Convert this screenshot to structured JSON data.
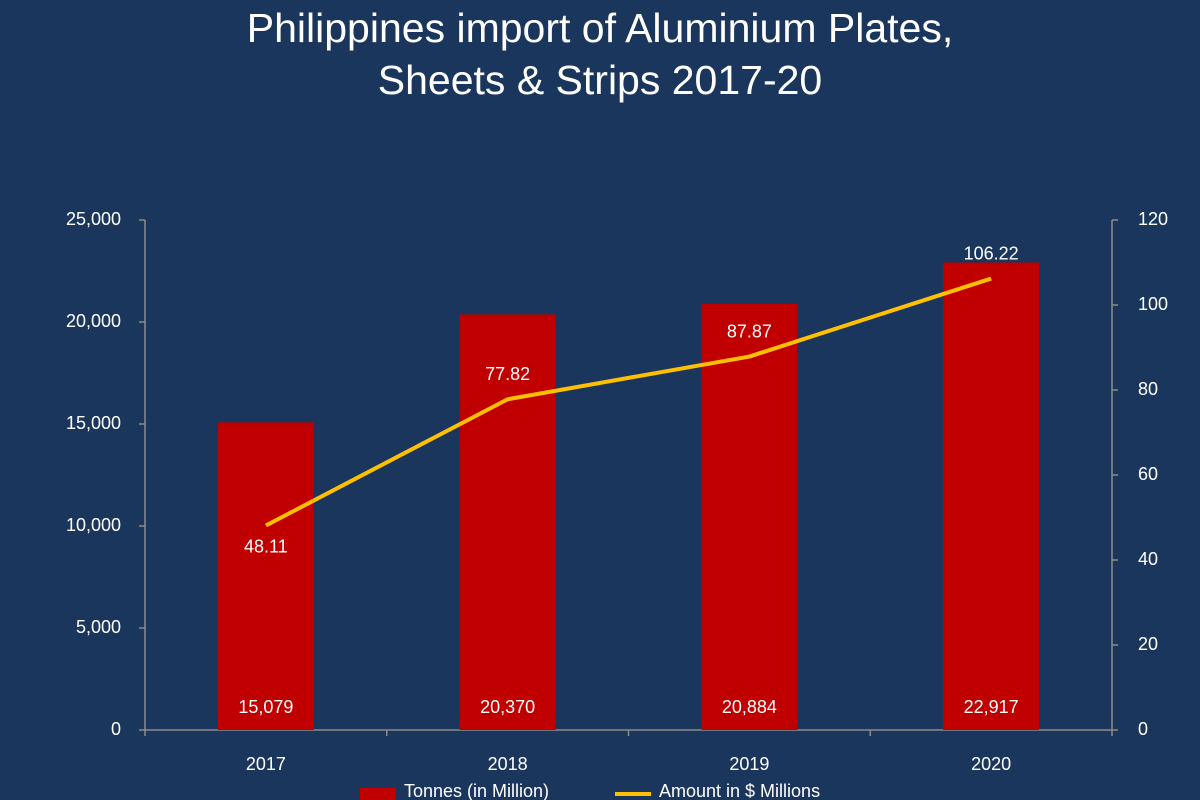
{
  "chart_data": {
    "type": "bar-line",
    "title": "Philippines import of Aluminium Plates, Sheets & Strips 2017-20",
    "categories": [
      "2017",
      "2018",
      "2019",
      "2020"
    ],
    "series": [
      {
        "name": "Tonnes (in Million)",
        "type": "bar",
        "color": "#c00000",
        "values": [
          15079,
          20370,
          20884,
          22917
        ],
        "value_labels": [
          "15,079",
          "20,370",
          "20,884",
          "22,917"
        ]
      },
      {
        "name": "Amount in $ Millions",
        "type": "line",
        "axis": "y2",
        "color": "#ffc000",
        "values": [
          48.11,
          77.82,
          87.87,
          106.22
        ]
      }
    ],
    "ylim": [
      0,
      25000
    ],
    "yticks": [
      0,
      {
        "value": 5000,
        "label": "5,000"
      },
      {
        "value": 10000,
        "label": "10,000"
      },
      {
        "value": 15000,
        "label": "15,000"
      },
      {
        "value": 20000,
        "label": "20,000"
      },
      {
        "value": 25000,
        "label": "25,000"
      }
    ],
    "y2lim": [
      0,
      120
    ],
    "y2ticks": [
      0,
      20,
      40,
      60,
      80,
      100,
      120
    ],
    "grid": false
  }
}
